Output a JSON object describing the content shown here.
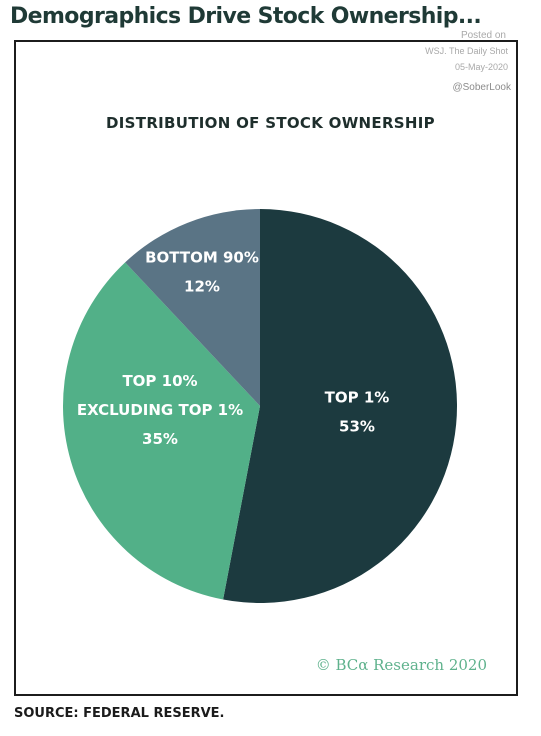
{
  "headline": "Demographics Drive Stock Ownership...",
  "watermark": {
    "posted": "Posted on",
    "publisher": "WSJ. The Daily Shot",
    "date": "05-May-2020",
    "handle": "@SoberLook"
  },
  "chart_data": {
    "type": "pie",
    "title": "DISTRIBUTION OF STOCK OWNERSHIP",
    "slices": [
      {
        "label": "TOP 1%",
        "value": 53,
        "value_label": "53%",
        "color": "#1c3a3f"
      },
      {
        "label": "TOP 10% EXCLUDING TOP 1%",
        "label_lines": [
          "TOP 10%",
          "EXCLUDING TOP 1%"
        ],
        "value": 35,
        "value_label": "35%",
        "color": "#52b088"
      },
      {
        "label": "BOTTOM 90%",
        "value": 12,
        "value_label": "12%",
        "color": "#5a7485"
      }
    ],
    "start_angle": "12 o'clock",
    "direction": "clockwise"
  },
  "copyright": "© BCα Research 2020",
  "source": "SOURCE: FEDERAL RESERVE."
}
